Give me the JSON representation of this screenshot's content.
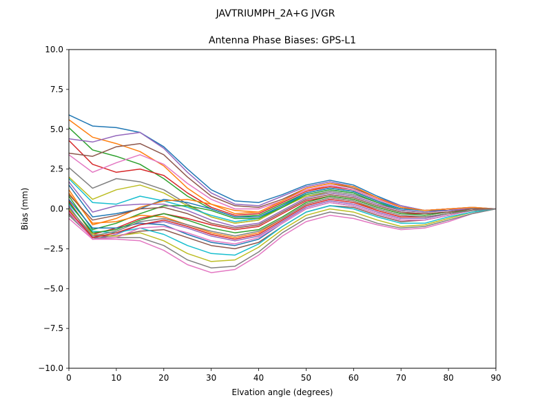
{
  "chart_data": {
    "type": "line",
    "suptitle": "JAVTRIUMPH_2A+G JVGR",
    "title": "Antenna Phase Biases: GPS-L1",
    "xlabel": "Elvation angle (degrees)",
    "ylabel": "Bias (mm)",
    "xlim": [
      0,
      90
    ],
    "ylim": [
      -10,
      10
    ],
    "xticks": [
      0,
      10,
      20,
      30,
      40,
      50,
      60,
      70,
      80,
      90
    ],
    "yticks": [
      -10.0,
      -7.5,
      -5.0,
      -2.5,
      0.0,
      2.5,
      5.0,
      7.5,
      10.0
    ],
    "xtick_labels": [
      "0",
      "10",
      "20",
      "30",
      "40",
      "50",
      "60",
      "70",
      "80",
      "90"
    ],
    "ytick_labels": [
      "−10.0",
      "−7.5",
      "−5.0",
      "−2.5",
      "0.0",
      "2.5",
      "5.0",
      "7.5",
      "10.0"
    ],
    "grid": false,
    "legend": "none",
    "colors": [
      "#1f77b4",
      "#ff7f0e",
      "#2ca02c",
      "#d62728",
      "#9467bd",
      "#8c564b",
      "#e377c2",
      "#7f7f7f",
      "#bcbd22",
      "#17becf"
    ],
    "x": [
      0,
      5,
      10,
      15,
      20,
      25,
      30,
      35,
      40,
      45,
      50,
      55,
      60,
      65,
      70,
      75,
      80,
      85,
      90
    ],
    "series": [
      {
        "values": [
          5.9,
          5.2,
          5.1,
          4.8,
          3.9,
          2.5,
          1.2,
          0.5,
          0.4,
          0.9,
          1.5,
          1.8,
          1.5,
          0.8,
          0.2,
          -0.1,
          0.0,
          0.1,
          0.0
        ]
      },
      {
        "values": [
          5.6,
          4.5,
          4.1,
          3.6,
          2.7,
          1.3,
          0.3,
          -0.3,
          -0.2,
          0.5,
          1.2,
          1.4,
          1.2,
          0.6,
          0.1,
          -0.1,
          0.0,
          0.0,
          0.0
        ]
      },
      {
        "values": [
          5.1,
          3.7,
          3.3,
          2.8,
          1.9,
          0.8,
          0.0,
          -0.5,
          -0.4,
          0.3,
          1.0,
          1.3,
          1.1,
          0.5,
          0.0,
          -0.1,
          -0.1,
          0.0,
          0.0
        ]
      },
      {
        "values": [
          4.3,
          2.8,
          2.3,
          2.5,
          2.1,
          1.0,
          0.1,
          -0.4,
          -0.3,
          0.4,
          1.1,
          1.4,
          1.2,
          0.6,
          0.1,
          -0.1,
          0.0,
          0.0,
          0.0
        ]
      },
      {
        "values": [
          4.4,
          4.2,
          4.6,
          4.8,
          3.8,
          2.3,
          1.0,
          0.3,
          0.2,
          0.8,
          1.4,
          1.7,
          1.4,
          0.7,
          0.2,
          -0.1,
          0.0,
          0.1,
          0.0
        ]
      },
      {
        "values": [
          3.5,
          3.3,
          3.9,
          4.1,
          3.4,
          2.0,
          0.8,
          0.2,
          0.1,
          0.6,
          1.3,
          1.6,
          1.3,
          0.7,
          0.1,
          -0.1,
          0.0,
          0.0,
          0.0
        ]
      },
      {
        "values": [
          3.4,
          2.3,
          2.9,
          3.4,
          2.8,
          1.6,
          0.6,
          0.0,
          0.0,
          0.5,
          1.2,
          1.5,
          1.2,
          0.6,
          0.1,
          -0.1,
          0.0,
          0.0,
          0.0
        ]
      },
      {
        "values": [
          2.6,
          1.3,
          1.9,
          1.7,
          1.2,
          0.3,
          -0.5,
          -0.9,
          -0.7,
          0.1,
          0.8,
          1.1,
          0.9,
          0.4,
          0.0,
          -0.1,
          -0.1,
          0.0,
          0.0
        ]
      },
      {
        "values": [
          2.0,
          0.6,
          1.2,
          1.5,
          1.0,
          0.2,
          -0.5,
          -0.9,
          -0.7,
          0.1,
          0.8,
          1.0,
          0.8,
          0.3,
          -0.1,
          -0.2,
          -0.1,
          0.0,
          0.0
        ]
      },
      {
        "values": [
          1.9,
          0.4,
          0.3,
          0.8,
          0.5,
          0.1,
          -0.4,
          -0.8,
          -0.6,
          0.2,
          0.9,
          1.2,
          1.0,
          0.4,
          0.0,
          -0.1,
          -0.1,
          0.0,
          0.0
        ]
      },
      {
        "values": [
          1.5,
          -0.5,
          -0.3,
          0.0,
          0.6,
          0.4,
          0.0,
          -0.5,
          -0.5,
          0.2,
          1.0,
          1.3,
          1.1,
          0.5,
          0.0,
          -0.1,
          -0.1,
          0.0,
          0.0
        ]
      },
      {
        "values": [
          1.2,
          -1.0,
          -0.6,
          0.1,
          0.5,
          0.6,
          0.3,
          -0.1,
          -0.2,
          0.5,
          1.3,
          1.6,
          1.4,
          0.7,
          0.1,
          -0.1,
          0.0,
          0.1,
          0.0
        ]
      },
      {
        "values": [
          0.8,
          -1.3,
          -0.9,
          -0.3,
          0.2,
          0.2,
          -0.1,
          -0.6,
          -0.6,
          0.1,
          0.9,
          1.2,
          1.0,
          0.4,
          -0.1,
          -0.2,
          -0.1,
          0.0,
          0.0
        ]
      },
      {
        "values": [
          0.5,
          -1.6,
          -1.2,
          -0.6,
          -0.3,
          -0.6,
          -1.0,
          -1.3,
          -1.1,
          -0.3,
          0.5,
          0.8,
          0.6,
          0.1,
          -0.3,
          -0.3,
          -0.2,
          -0.1,
          0.0
        ]
      },
      {
        "values": [
          0.2,
          -1.9,
          -1.6,
          -1.0,
          -0.8,
          -1.2,
          -1.7,
          -2.0,
          -1.7,
          -0.8,
          0.1,
          0.5,
          0.3,
          -0.2,
          -0.6,
          -0.6,
          -0.3,
          -0.1,
          0.0
        ]
      },
      {
        "values": [
          -0.3,
          -1.7,
          -1.7,
          -1.4,
          -1.3,
          -1.8,
          -2.3,
          -2.5,
          -2.1,
          -1.1,
          -0.2,
          0.2,
          0.1,
          -0.4,
          -0.8,
          -0.7,
          -0.4,
          -0.1,
          0.0
        ]
      },
      {
        "values": [
          -0.6,
          -1.9,
          -1.9,
          -2.0,
          -2.6,
          -3.5,
          -4.0,
          -3.8,
          -2.9,
          -1.7,
          -0.8,
          -0.4,
          -0.6,
          -1.0,
          -1.3,
          -1.2,
          -0.8,
          -0.3,
          0.0
        ]
      },
      {
        "values": [
          -0.4,
          -1.8,
          -1.8,
          -1.8,
          -2.3,
          -3.2,
          -3.7,
          -3.6,
          -2.7,
          -1.5,
          -0.6,
          -0.2,
          -0.4,
          -0.9,
          -1.2,
          -1.1,
          -0.7,
          -0.3,
          0.0
        ]
      },
      {
        "values": [
          0.0,
          -1.6,
          -1.7,
          -1.5,
          -2.0,
          -2.8,
          -3.3,
          -3.2,
          -2.4,
          -1.3,
          -0.4,
          0.0,
          -0.2,
          -0.7,
          -1.1,
          -1.0,
          -0.6,
          -0.2,
          0.0
        ]
      },
      {
        "values": [
          0.3,
          -1.4,
          -1.5,
          -1.2,
          -1.6,
          -2.3,
          -2.8,
          -2.9,
          -2.2,
          -1.1,
          -0.2,
          0.2,
          0.0,
          -0.5,
          -0.9,
          -0.9,
          -0.5,
          -0.2,
          0.0
        ]
      },
      {
        "values": [
          0.6,
          -1.2,
          -1.2,
          -0.9,
          -1.0,
          -1.6,
          -2.1,
          -2.3,
          -1.9,
          -0.9,
          0.0,
          0.4,
          0.2,
          -0.3,
          -0.7,
          -0.7,
          -0.4,
          -0.1,
          0.0
        ]
      },
      {
        "values": [
          1.0,
          -0.9,
          -0.8,
          -0.4,
          -0.5,
          -1.0,
          -1.5,
          -1.8,
          -1.5,
          -0.6,
          0.3,
          0.7,
          0.5,
          -0.1,
          -0.5,
          -0.5,
          -0.3,
          -0.1,
          0.0
        ]
      },
      {
        "values": [
          0.4,
          -1.5,
          -1.3,
          -0.7,
          -0.3,
          -0.7,
          -1.2,
          -1.5,
          -1.3,
          -0.5,
          0.4,
          0.8,
          0.6,
          0.1,
          -0.3,
          -0.4,
          -0.2,
          -0.1,
          0.0
        ]
      },
      {
        "values": [
          -0.1,
          -1.8,
          -1.5,
          -1.0,
          -0.7,
          -1.1,
          -1.6,
          -1.9,
          -1.6,
          -0.7,
          0.2,
          0.6,
          0.4,
          -0.1,
          -0.5,
          -0.5,
          -0.3,
          -0.1,
          0.0
        ]
      },
      {
        "values": [
          1.7,
          -0.2,
          0.2,
          0.3,
          0.3,
          -0.1,
          -0.7,
          -1.1,
          -0.9,
          -0.1,
          0.7,
          1.0,
          0.8,
          0.3,
          -0.1,
          -0.2,
          -0.1,
          0.0,
          0.0
        ]
      },
      {
        "values": [
          0.9,
          -0.7,
          -0.4,
          0.0,
          0.1,
          -0.3,
          -0.9,
          -1.2,
          -1.0,
          -0.2,
          0.6,
          0.9,
          0.7,
          0.2,
          -0.2,
          -0.3,
          -0.2,
          0.0,
          0.0
        ]
      },
      {
        "values": [
          -0.2,
          -1.9,
          -1.8,
          -1.2,
          -1.1,
          -1.5,
          -2.0,
          -2.2,
          -1.8,
          -0.9,
          0.0,
          0.4,
          0.2,
          -0.3,
          -0.7,
          -0.7,
          -0.4,
          -0.1,
          0.0
        ]
      },
      {
        "values": [
          0.1,
          -1.7,
          -1.4,
          -0.8,
          -0.6,
          -1.0,
          -1.4,
          -1.7,
          -1.4,
          -0.6,
          0.3,
          0.7,
          0.5,
          0.0,
          -0.4,
          -0.5,
          -0.3,
          -0.1,
          0.0
        ]
      }
    ]
  }
}
